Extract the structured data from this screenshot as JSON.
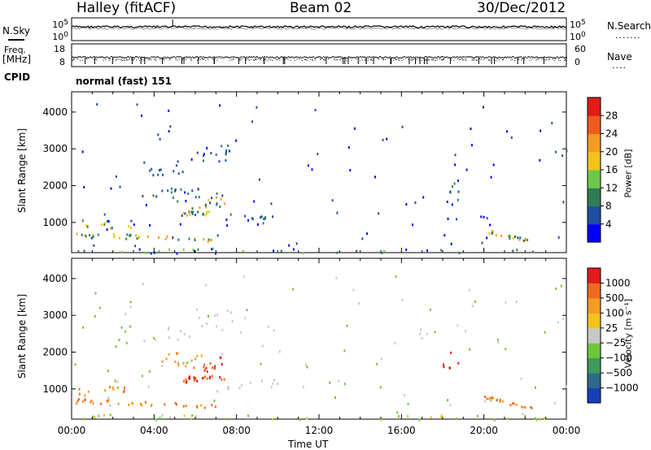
{
  "header": {
    "station": "Halley (fitACF)",
    "beam": "Beam 02",
    "date": "30/Dec/2012"
  },
  "left_labels": {
    "nsky": "N.Sky",
    "freq": "Freq.",
    "freq_unit": "[MHz]",
    "cpid": "CPID"
  },
  "right_labels": {
    "nsearch": "N.Search",
    "nsearch_marker": ".......",
    "nave": "Nave",
    "nave_marker": "...."
  },
  "cpid_text": "normal (fast) 151",
  "chart_data": [
    {
      "type": "line",
      "name": "noise-panel",
      "left_axis_ticks": [
        "10^5",
        "10^0"
      ],
      "right_axis_ticks": [
        "10^5",
        "10^0"
      ],
      "note": "N.Sky and N.Search noise traces, nearly constant near the top of the range over 00:00-24:00"
    },
    {
      "type": "scatter",
      "name": "freq-nave-panel",
      "left_axis_ticks": [
        "18",
        "8"
      ],
      "right_axis_ticks": [
        "60",
        "0"
      ],
      "note": "Frequency trace near 11 MHz with Nave dots; periodic vertical drops"
    },
    {
      "type": "heatmap",
      "name": "power-panel",
      "ylabel": "Slant Range [km]",
      "ylim": [
        180,
        4550
      ],
      "yticks": [
        1000,
        2000,
        3000,
        4000
      ],
      "xlim": [
        "00:00",
        "24:00"
      ],
      "colorbar": {
        "label": "Power [dB]",
        "ticks": [
          "4",
          "8",
          "12",
          "16",
          "20",
          "24",
          "28"
        ],
        "colors": [
          "#0000ff",
          "#1e4fa0",
          "#2e7d55",
          "#6cc84a",
          "#f2c318",
          "#f59a22",
          "#f05a1e",
          "#e61a1a"
        ]
      }
    },
    {
      "type": "heatmap",
      "name": "velocity-panel",
      "ylabel": "Slant Range [km]",
      "ylim": [
        180,
        4550
      ],
      "yticks": [
        1000,
        2000,
        3000,
        4000
      ],
      "xlabel": "Time UT",
      "xticks": [
        "00:00",
        "04:00",
        "08:00",
        "12:00",
        "16:00",
        "20:00",
        "00:00"
      ],
      "colorbar": {
        "label": "Velocity [m s⁻¹]",
        "ticks": [
          "1000",
          "500",
          "100",
          "25",
          "−25",
          "−100",
          "−500",
          "−1000"
        ],
        "colors": [
          "#1540b8",
          "#2d6a8c",
          "#3c9a5a",
          "#6cc83a",
          "#c8c8c8",
          "#f2c318",
          "#f59a22",
          "#f06a1e",
          "#e61a1a"
        ]
      }
    }
  ]
}
